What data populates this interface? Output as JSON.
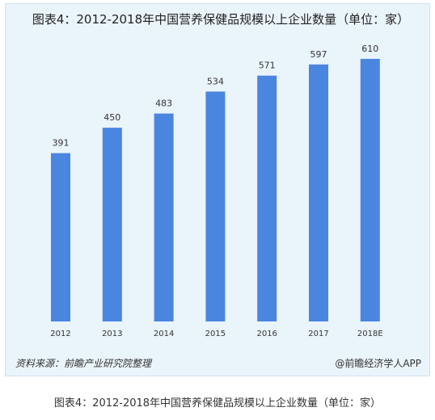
{
  "title": "图表4：2012-2018年中国营养保健品规模以上企业数量（单位：家）",
  "source_left": "资料来源：前瞻产业研究院整理",
  "source_right": "@前瞻经济学人APP",
  "caption": "图表4：2012-2018年中国营养保健品规模以上企业数量（单位：家）",
  "colors": {
    "bar": "#4a86e0",
    "panel": "#eaf4fb"
  },
  "chart_data": {
    "type": "bar",
    "title": "图表4：2012-2018年中国营养保健品规模以上企业数量（单位：家）",
    "categories": [
      "2012",
      "2013",
      "2014",
      "2015",
      "2016",
      "2017",
      "2018E"
    ],
    "values": [
      391,
      450,
      483,
      534,
      571,
      597,
      610
    ],
    "xlabel": "",
    "ylabel": "",
    "ylim": [
      0,
      650
    ],
    "grid": false,
    "legend": "none"
  }
}
